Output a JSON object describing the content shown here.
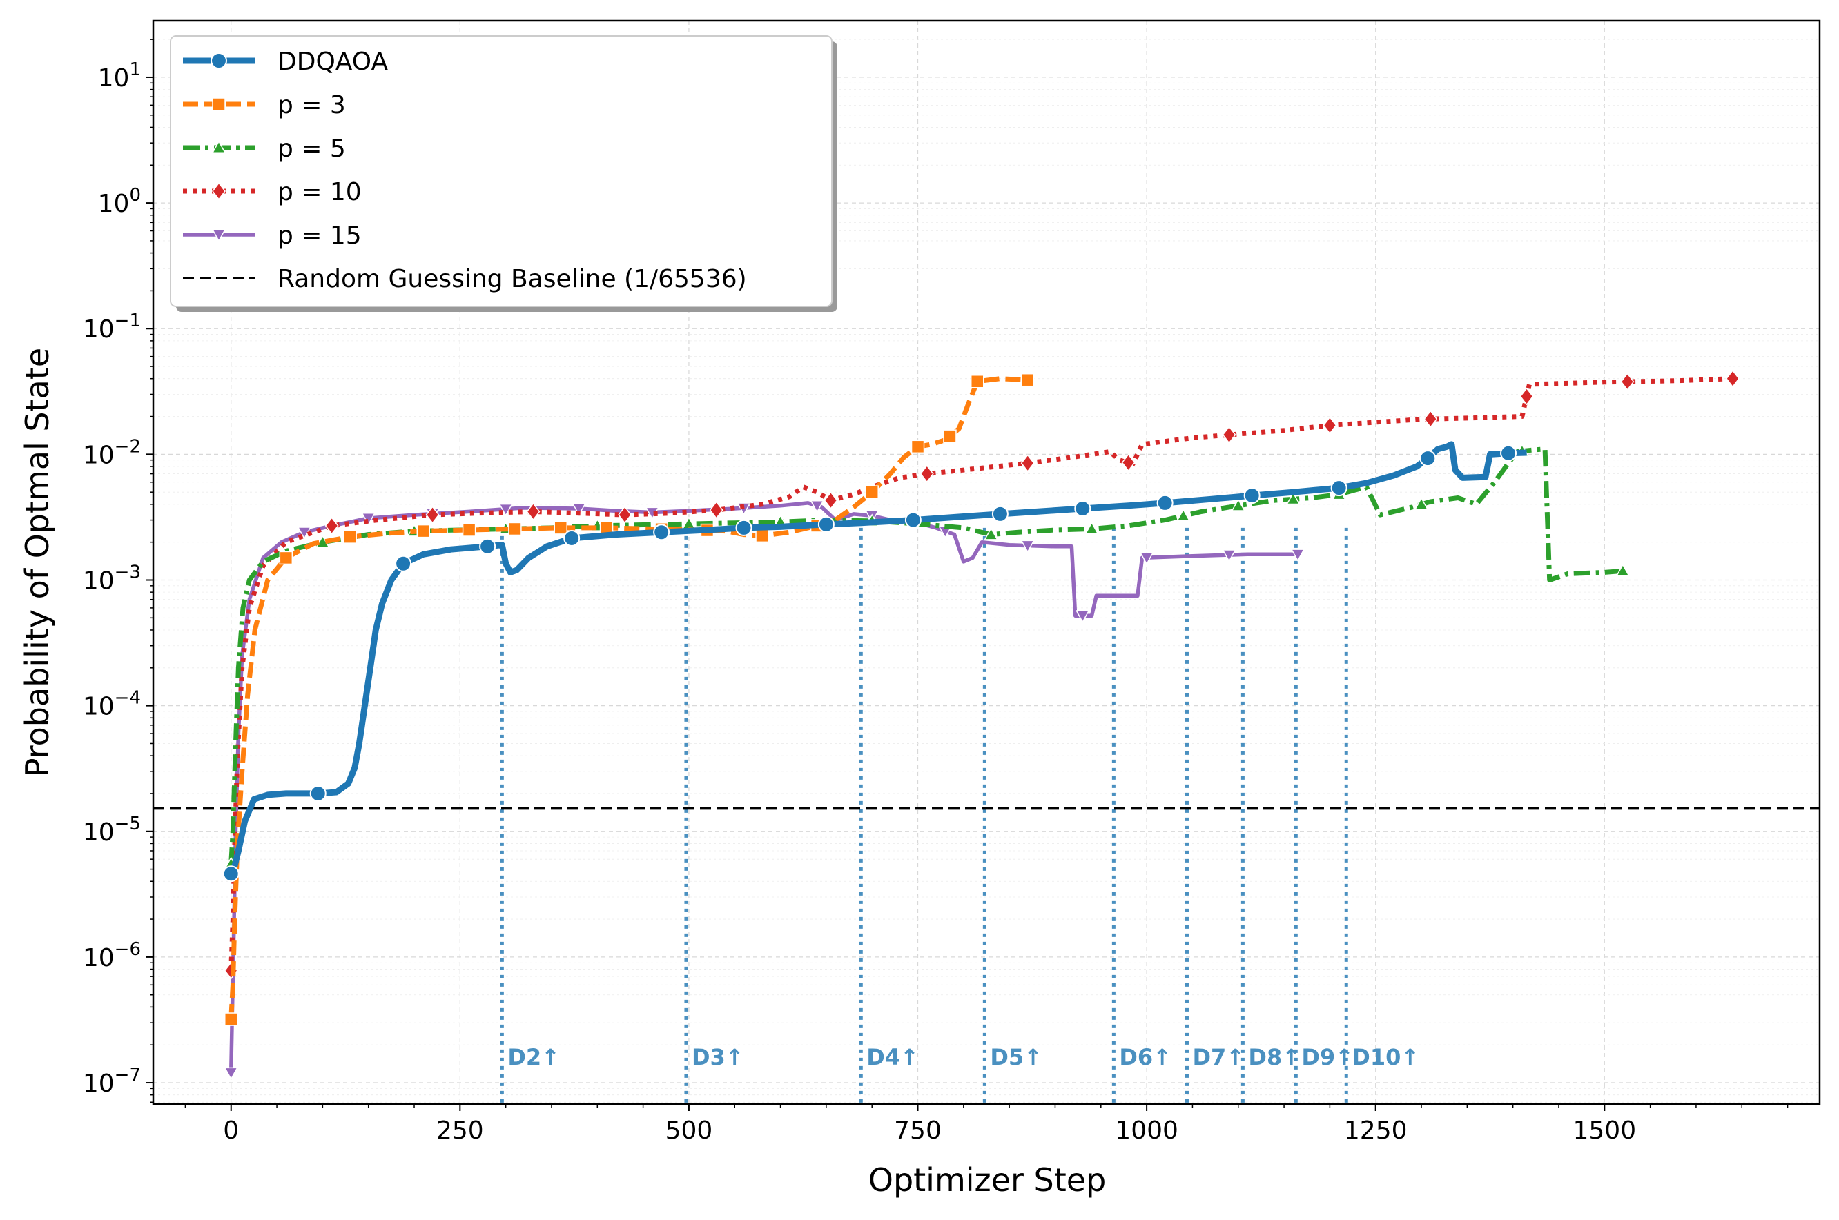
{
  "chart_data": {
    "type": "line",
    "title": "",
    "xlabel": "Optimizer Step",
    "ylabel": "Probability of Optmal State",
    "xlim": [
      -85,
      1735
    ],
    "ylim_log10": [
      -7.17,
      1.45
    ],
    "y_scale": "log",
    "grid": true,
    "legend_position": "top-left",
    "x_ticks": [
      0,
      250,
      500,
      750,
      1000,
      1250,
      1500
    ],
    "y_ticks": [
      {
        "exp": 1,
        "label": "10",
        "sup": "1"
      },
      {
        "exp": 0,
        "label": "10",
        "sup": "0"
      },
      {
        "exp": -1,
        "label": "10",
        "sup": "−1"
      },
      {
        "exp": -2,
        "label": "10",
        "sup": "−2"
      },
      {
        "exp": -3,
        "label": "10",
        "sup": "−3"
      },
      {
        "exp": -4,
        "label": "10",
        "sup": "−4"
      },
      {
        "exp": -5,
        "label": "10",
        "sup": "−5"
      },
      {
        "exp": -6,
        "label": "10",
        "sup": "−6"
      },
      {
        "exp": -7,
        "label": "10",
        "sup": "−7"
      }
    ],
    "baseline": {
      "name": "Random Guessing Baseline (1/65536)",
      "value": 1.52588e-05,
      "color": "#000000"
    },
    "depth_markers": [
      {
        "label": "D2↑",
        "x": 296
      },
      {
        "label": "D3↑",
        "x": 497
      },
      {
        "label": "D4↑",
        "x": 688
      },
      {
        "label": "D5↑",
        "x": 823
      },
      {
        "label": "D6↑",
        "x": 964
      },
      {
        "label": "D7↑",
        "x": 1044
      },
      {
        "label": "D8↑",
        "x": 1105
      },
      {
        "label": "D9↑",
        "x": 1163
      },
      {
        "label": "D10↑",
        "x": 1218
      }
    ],
    "series": [
      {
        "name": "DDQAOA",
        "color": "#1f77b4",
        "style": "solid",
        "marker": "circle",
        "points": [
          [
            0,
            4.6e-06
          ],
          [
            3,
            5e-06
          ],
          [
            8,
            7e-06
          ],
          [
            15,
            1.2e-05
          ],
          [
            25,
            1.8e-05
          ],
          [
            40,
            1.95e-05
          ],
          [
            60,
            2e-05
          ],
          [
            95,
            2e-05
          ],
          [
            115,
            2.05e-05
          ],
          [
            128,
            2.4e-05
          ],
          [
            135,
            3.2e-05
          ],
          [
            140,
            5e-05
          ],
          [
            146,
            0.0001
          ],
          [
            152,
            0.0002
          ],
          [
            158,
            0.0004
          ],
          [
            165,
            0.00065
          ],
          [
            175,
            0.001
          ],
          [
            188,
            0.00135
          ],
          [
            210,
            0.0016
          ],
          [
            240,
            0.00175
          ],
          [
            280,
            0.00185
          ],
          [
            296,
            0.0019
          ],
          [
            300,
            0.00135
          ],
          [
            305,
            0.00115
          ],
          [
            312,
            0.0012
          ],
          [
            325,
            0.0015
          ],
          [
            345,
            0.00185
          ],
          [
            372,
            0.00215
          ],
          [
            420,
            0.0023
          ],
          [
            470,
            0.0024
          ],
          [
            520,
            0.0025
          ],
          [
            560,
            0.0026
          ],
          [
            600,
            0.00265
          ],
          [
            640,
            0.00275
          ],
          [
            688,
            0.00285
          ],
          [
            745,
            0.003
          ],
          [
            800,
            0.0032
          ],
          [
            840,
            0.00335
          ],
          [
            880,
            0.0035
          ],
          [
            930,
            0.0037
          ],
          [
            980,
            0.0039
          ],
          [
            1020,
            0.0041
          ],
          [
            1070,
            0.0044
          ],
          [
            1115,
            0.0047
          ],
          [
            1160,
            0.005
          ],
          [
            1210,
            0.0054
          ],
          [
            1240,
            0.0059
          ],
          [
            1270,
            0.0068
          ],
          [
            1295,
            0.008
          ],
          [
            1307,
            0.0093
          ],
          [
            1318,
            0.011
          ],
          [
            1328,
            0.0115
          ],
          [
            1333,
            0.012
          ],
          [
            1337,
            0.0075
          ],
          [
            1345,
            0.0065
          ],
          [
            1370,
            0.0066
          ],
          [
            1375,
            0.01
          ],
          [
            1395,
            0.0102
          ],
          [
            1415,
            0.0103
          ]
        ],
        "marker_x": [
          0,
          95,
          188,
          280,
          372,
          470,
          560,
          650,
          745,
          840,
          930,
          1020,
          1115,
          1210,
          1307,
          1395
        ]
      },
      {
        "name": "p = 3",
        "color": "#ff7f0e",
        "style": "dashed",
        "marker": "square",
        "points": [
          [
            0,
            3.2e-07
          ],
          [
            2,
            6e-07
          ],
          [
            4,
            2e-06
          ],
          [
            7,
            8e-06
          ],
          [
            12,
            3e-05
          ],
          [
            18,
            0.00012
          ],
          [
            26,
            0.0004
          ],
          [
            40,
            0.001
          ],
          [
            60,
            0.0015
          ],
          [
            90,
            0.00195
          ],
          [
            130,
            0.0022
          ],
          [
            170,
            0.00235
          ],
          [
            210,
            0.00245
          ],
          [
            260,
            0.0025
          ],
          [
            310,
            0.00255
          ],
          [
            360,
            0.0026
          ],
          [
            410,
            0.0026
          ],
          [
            460,
            0.00255
          ],
          [
            510,
            0.0025
          ],
          [
            540,
            0.00245
          ],
          [
            560,
            0.0023
          ],
          [
            580,
            0.00225
          ],
          [
            610,
            0.0024
          ],
          [
            640,
            0.0027
          ],
          [
            660,
            0.003
          ],
          [
            680,
            0.0038
          ],
          [
            700,
            0.005
          ],
          [
            720,
            0.007
          ],
          [
            735,
            0.0095
          ],
          [
            750,
            0.0115
          ],
          [
            765,
            0.012
          ],
          [
            780,
            0.013
          ],
          [
            795,
            0.016
          ],
          [
            805,
            0.025
          ],
          [
            815,
            0.038
          ],
          [
            840,
            0.04
          ],
          [
            870,
            0.039
          ]
        ],
        "marker_x": [
          0,
          60,
          130,
          210,
          260,
          310,
          360,
          410,
          470,
          520,
          580,
          640,
          700,
          750,
          785,
          815,
          870
        ]
      },
      {
        "name": "p = 5",
        "color": "#2ca02c",
        "style": "dashdot",
        "marker": "triangle-up",
        "points": [
          [
            0,
            5.5e-06
          ],
          [
            2,
            1e-05
          ],
          [
            5,
            5e-05
          ],
          [
            8,
            0.0002
          ],
          [
            13,
            0.0006
          ],
          [
            20,
            0.001
          ],
          [
            35,
            0.0014
          ],
          [
            60,
            0.0017
          ],
          [
            100,
            0.002
          ],
          [
            150,
            0.0023
          ],
          [
            200,
            0.00245
          ],
          [
            250,
            0.0025
          ],
          [
            300,
            0.00255
          ],
          [
            350,
            0.0026
          ],
          [
            400,
            0.0027
          ],
          [
            450,
            0.00275
          ],
          [
            500,
            0.0028
          ],
          [
            550,
            0.00285
          ],
          [
            600,
            0.0029
          ],
          [
            650,
            0.003
          ],
          [
            700,
            0.00295
          ],
          [
            750,
            0.0028
          ],
          [
            800,
            0.0026
          ],
          [
            830,
            0.0023
          ],
          [
            860,
            0.0024
          ],
          [
            900,
            0.0025
          ],
          [
            940,
            0.00255
          ],
          [
            980,
            0.0027
          ],
          [
            1020,
            0.003
          ],
          [
            1060,
            0.0035
          ],
          [
            1100,
            0.0039
          ],
          [
            1140,
            0.0043
          ],
          [
            1180,
            0.0045
          ],
          [
            1210,
            0.0048
          ],
          [
            1240,
            0.0055
          ],
          [
            1255,
            0.0033
          ],
          [
            1290,
            0.0038
          ],
          [
            1310,
            0.0042
          ],
          [
            1340,
            0.0045
          ],
          [
            1360,
            0.004
          ],
          [
            1380,
            0.006
          ],
          [
            1395,
            0.0085
          ],
          [
            1405,
            0.0105
          ],
          [
            1420,
            0.0108
          ],
          [
            1435,
            0.011
          ],
          [
            1440,
            0.001
          ],
          [
            1460,
            0.00112
          ],
          [
            1500,
            0.00115
          ],
          [
            1520,
            0.00118
          ]
        ],
        "marker_x": [
          0,
          100,
          200,
          300,
          400,
          500,
          600,
          700,
          830,
          940,
          1040,
          1100,
          1160,
          1210,
          1300,
          1410,
          1520
        ]
      },
      {
        "name": "p = 10",
        "color": "#d62728",
        "style": "dotted",
        "marker": "diamond",
        "points": [
          [
            0,
            7.8e-07
          ],
          [
            2,
            2e-06
          ],
          [
            4,
            8e-06
          ],
          [
            7,
            4e-05
          ],
          [
            12,
            0.0002
          ],
          [
            20,
            0.0006
          ],
          [
            35,
            0.0013
          ],
          [
            60,
            0.002
          ],
          [
            110,
            0.0027
          ],
          [
            160,
            0.003
          ],
          [
            220,
            0.0033
          ],
          [
            270,
            0.0034
          ],
          [
            330,
            0.0035
          ],
          [
            380,
            0.0034
          ],
          [
            430,
            0.0033
          ],
          [
            480,
            0.0034
          ],
          [
            530,
            0.0036
          ],
          [
            580,
            0.004
          ],
          [
            610,
            0.0046
          ],
          [
            625,
            0.0055
          ],
          [
            640,
            0.005
          ],
          [
            655,
            0.0043
          ],
          [
            680,
            0.0048
          ],
          [
            700,
            0.0055
          ],
          [
            730,
            0.0065
          ],
          [
            760,
            0.007
          ],
          [
            800,
            0.0075
          ],
          [
            870,
            0.0085
          ],
          [
            920,
            0.0095
          ],
          [
            960,
            0.0105
          ],
          [
            970,
            0.009
          ],
          [
            985,
            0.0084
          ],
          [
            995,
            0.012
          ],
          [
            1050,
            0.0135
          ],
          [
            1100,
            0.0145
          ],
          [
            1150,
            0.0155
          ],
          [
            1200,
            0.017
          ],
          [
            1250,
            0.018
          ],
          [
            1300,
            0.019
          ],
          [
            1360,
            0.0195
          ],
          [
            1410,
            0.02
          ],
          [
            1418,
            0.036
          ],
          [
            1500,
            0.0375
          ],
          [
            1580,
            0.0385
          ],
          [
            1640,
            0.04
          ]
        ],
        "marker_x": [
          0,
          110,
          220,
          330,
          430,
          530,
          655,
          760,
          870,
          980,
          1090,
          1200,
          1310,
          1415,
          1525,
          1640
        ]
      },
      {
        "name": "p = 15",
        "color": "#9467bd",
        "style": "solid",
        "marker": "triangle-down",
        "points": [
          [
            0,
            1.2e-07
          ],
          [
            1,
            3e-07
          ],
          [
            3,
            1.5e-06
          ],
          [
            5,
            1e-05
          ],
          [
            8,
            6e-05
          ],
          [
            12,
            0.00025
          ],
          [
            20,
            0.0007
          ],
          [
            35,
            0.0015
          ],
          [
            55,
            0.002
          ],
          [
            80,
            0.0024
          ],
          [
            110,
            0.0027
          ],
          [
            150,
            0.0031
          ],
          [
            200,
            0.0033
          ],
          [
            260,
            0.0035
          ],
          [
            320,
            0.00375
          ],
          [
            380,
            0.0037
          ],
          [
            420,
            0.00355
          ],
          [
            460,
            0.00345
          ],
          [
            500,
            0.00355
          ],
          [
            550,
            0.0037
          ],
          [
            600,
            0.0039
          ],
          [
            630,
            0.0041
          ],
          [
            645,
            0.0038
          ],
          [
            660,
            0.003
          ],
          [
            680,
            0.00335
          ],
          [
            700,
            0.00325
          ],
          [
            720,
            0.003
          ],
          [
            750,
            0.00285
          ],
          [
            770,
            0.0026
          ],
          [
            790,
            0.0023
          ],
          [
            800,
            0.0014
          ],
          [
            810,
            0.0015
          ],
          [
            820,
            0.002
          ],
          [
            850,
            0.0019
          ],
          [
            900,
            0.00185
          ],
          [
            918,
            0.00185
          ],
          [
            922,
            0.00052
          ],
          [
            940,
            0.00052
          ],
          [
            945,
            0.00075
          ],
          [
            990,
            0.00075
          ],
          [
            995,
            0.0015
          ],
          [
            1050,
            0.00155
          ],
          [
            1110,
            0.0016
          ],
          [
            1165,
            0.0016
          ]
        ],
        "marker_x": [
          0,
          80,
          150,
          220,
          300,
          380,
          460,
          560,
          640,
          700,
          780,
          870,
          930,
          1000,
          1090,
          1165
        ]
      }
    ]
  }
}
